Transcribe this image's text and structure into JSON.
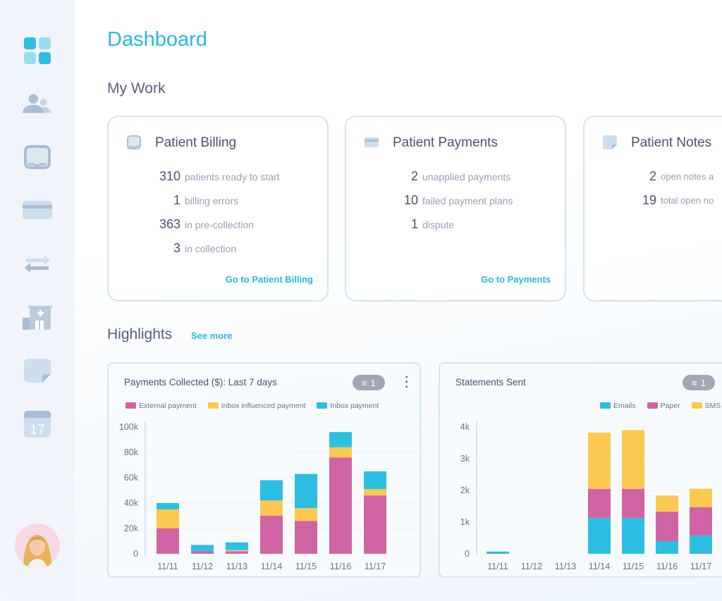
{
  "page_title": "Dashboard",
  "sidebar": {
    "items": [
      {
        "name": "dashboard",
        "icon": "grid-icon",
        "active": true
      },
      {
        "name": "patients",
        "icon": "users-icon"
      },
      {
        "name": "billing",
        "icon": "inbox-icon"
      },
      {
        "name": "payments",
        "icon": "credit-card-icon"
      },
      {
        "name": "transfers",
        "icon": "arrows-exchange-icon"
      },
      {
        "name": "facilities",
        "icon": "hospital-icon"
      },
      {
        "name": "notes",
        "icon": "sticky-note-icon"
      },
      {
        "name": "calendar",
        "icon": "calendar-icon",
        "label": "17"
      }
    ]
  },
  "my_work": {
    "title": "My Work",
    "cards": [
      {
        "title": "Patient Billing",
        "icon": "inbox-icon",
        "stats": [
          {
            "n": "310",
            "t": "patients ready to start"
          },
          {
            "n": "1",
            "t": "billing errors"
          },
          {
            "n": "363",
            "t": "in pre-collection"
          },
          {
            "n": "3",
            "t": "in collection"
          }
        ],
        "link": "Go to Patient Billing"
      },
      {
        "title": "Patient Payments",
        "icon": "credit-card-icon",
        "stats": [
          {
            "n": "2",
            "t": "unapplied payments"
          },
          {
            "n": "10",
            "t": "failed payment plans"
          },
          {
            "n": "1",
            "t": "dispute"
          }
        ],
        "link": "Go to Payments"
      },
      {
        "title": "Patient Notes",
        "icon": "sticky-note-icon",
        "stats": [
          {
            "n": "2",
            "t": "open notes a"
          },
          {
            "n": "19",
            "t": "total open no"
          }
        ]
      }
    ]
  },
  "highlights": {
    "title": "Highlights",
    "see_more": "See more"
  },
  "colors": {
    "accent": "#29b8e2",
    "pink": "#d064a2",
    "yellow": "#fbc94f",
    "cyan": "#2bbfe3"
  },
  "chart_data": [
    {
      "type": "bar",
      "stacked": true,
      "title": "Payments Collected ($): Last 7 days",
      "filter_count": "1",
      "categories": [
        "11/11",
        "11/12",
        "11/13",
        "11/14",
        "11/15",
        "11/16",
        "11/17"
      ],
      "yticks": [
        "0",
        "20k",
        "40k",
        "60k",
        "80k",
        "100k"
      ],
      "ylim": [
        0,
        100000
      ],
      "series": [
        {
          "name": "External payment",
          "color": "#d064a2",
          "values": [
            20000,
            2000,
            2000,
            30000,
            26000,
            76000,
            46000
          ]
        },
        {
          "name": "Inbox influenced payment",
          "color": "#fbc94f",
          "values": [
            15000,
            0,
            1000,
            12000,
            10000,
            8000,
            5000
          ]
        },
        {
          "name": "Inbox payment",
          "color": "#2bbfe3",
          "values": [
            5000,
            5000,
            6000,
            16000,
            27000,
            12000,
            14000
          ]
        }
      ],
      "legend": "top"
    },
    {
      "type": "bar",
      "stacked": true,
      "title": "Statements Sent",
      "filter_count": "1",
      "categories": [
        "11/11",
        "11/12",
        "11/13",
        "11/14",
        "11/15",
        "11/16",
        "11/17"
      ],
      "yticks": [
        "0",
        "1k",
        "2k",
        "3k",
        "4k"
      ],
      "ylim": [
        0,
        4000
      ],
      "series": [
        {
          "name": "Emails",
          "color": "#2bbfe3",
          "values": [
            70,
            0,
            0,
            1130,
            1130,
            400,
            580
          ]
        },
        {
          "name": "Paper",
          "color": "#d064a2",
          "values": [
            0,
            0,
            0,
            920,
            920,
            930,
            890
          ]
        },
        {
          "name": "SMS",
          "color": "#fbc94f",
          "values": [
            0,
            0,
            0,
            1770,
            1850,
            510,
            580
          ]
        }
      ],
      "legend": "top-right"
    }
  ]
}
